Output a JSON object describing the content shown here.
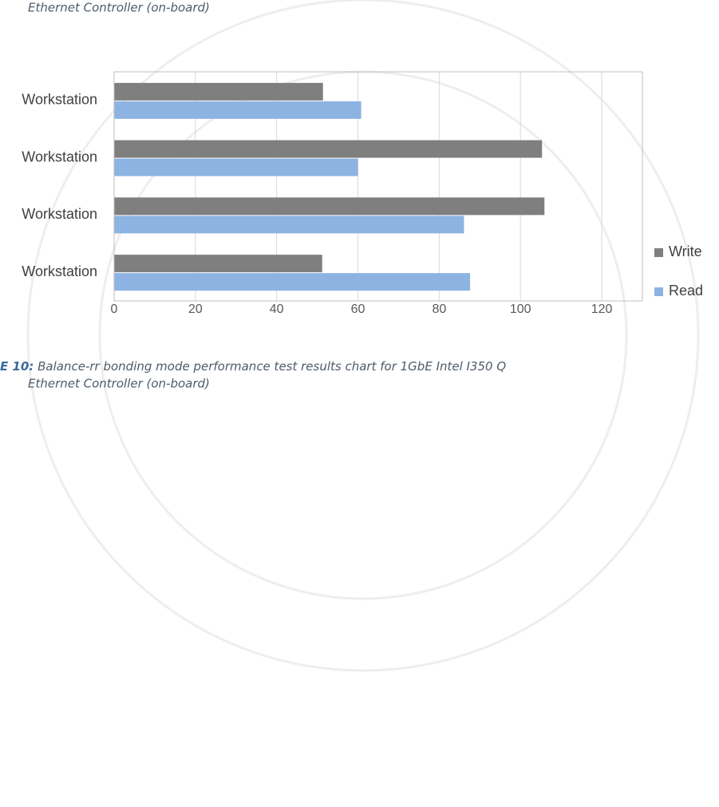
{
  "header_caption": "Ethernet Controller (on-board)",
  "figure_caption": {
    "label": "E 10:",
    "text": "Balance-rr bonding mode performance test results chart for 1GbE Intel I350 Q",
    "continuation": "Ethernet Controller (on-board)"
  },
  "chart_data": {
    "type": "hbar",
    "categories": [
      "Workstation",
      "Workstation",
      "Workstation",
      "Workstation"
    ],
    "series": [
      {
        "name": "Write",
        "color": "#7f7f7f",
        "values": [
          51.4,
          105.3,
          105.9,
          51.2
        ]
      },
      {
        "name": "Read",
        "color": "#8db3e2",
        "values": [
          60.8,
          60,
          86.1,
          87.6
        ]
      }
    ],
    "xlim": [
      0,
      130
    ],
    "xticks": [
      0,
      20,
      40,
      60,
      80,
      100,
      120
    ],
    "grid": true,
    "legend": "right"
  }
}
